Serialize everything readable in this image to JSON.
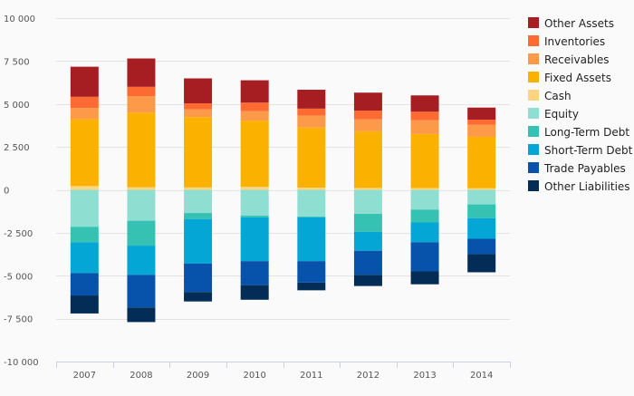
{
  "chart_data": {
    "type": "bar",
    "stacked": true,
    "categories": [
      "2007",
      "2008",
      "2009",
      "2010",
      "2011",
      "2012",
      "2013",
      "2014"
    ],
    "ylim": [
      -10000,
      10000
    ],
    "yticks": [
      10000,
      7500,
      5000,
      2500,
      0,
      -2500,
      -5000,
      -7500,
      -10000
    ],
    "ytick_labels": [
      "10 000",
      "7 500",
      "5 000",
      "2 500",
      "0",
      "-2 500",
      "-5 000",
      "-7 500",
      "-10 000"
    ],
    "grid": true,
    "legend_position": "right",
    "title": "",
    "xlabel": "",
    "ylabel": "",
    "series": [
      {
        "name": "Cash",
        "color": "#fdd582",
        "group": "positive",
        "values": [
          220,
          150,
          140,
          180,
          130,
          110,
          100,
          90
        ]
      },
      {
        "name": "Fixed Assets",
        "color": "#fbb100",
        "group": "positive",
        "values": [
          3900,
          4350,
          4100,
          3850,
          3500,
          3300,
          3150,
          3000
        ]
      },
      {
        "name": "Receivables",
        "color": "#fc9a4a",
        "group": "positive",
        "values": [
          650,
          950,
          450,
          550,
          700,
          700,
          800,
          700
        ]
      },
      {
        "name": "Inventories",
        "color": "#fd6b32",
        "group": "positive",
        "values": [
          650,
          550,
          350,
          500,
          400,
          500,
          500,
          300
        ]
      },
      {
        "name": "Other Assets",
        "color": "#a61d22",
        "group": "positive",
        "values": [
          1750,
          1650,
          1450,
          1300,
          1100,
          1050,
          950,
          700
        ]
      },
      {
        "name": "Equity",
        "color": "#8fded2",
        "group": "negative",
        "values": [
          2150,
          1800,
          1350,
          1500,
          1550,
          1400,
          1150,
          850
        ]
      },
      {
        "name": "Long-Term Debt",
        "color": "#35c2b3",
        "group": "negative",
        "values": [
          900,
          1450,
          350,
          100,
          50,
          1050,
          750,
          800
        ]
      },
      {
        "name": "Short-Term Debt",
        "color": "#04a6d5",
        "group": "negative",
        "values": [
          1800,
          1700,
          2600,
          2550,
          2550,
          1100,
          1150,
          1200
        ]
      },
      {
        "name": "Trade Payables",
        "color": "#0753ab",
        "group": "negative",
        "values": [
          1300,
          1900,
          1650,
          1400,
          1250,
          1400,
          1700,
          900
        ]
      },
      {
        "name": "Other Liabilities",
        "color": "#032d57",
        "group": "negative",
        "values": [
          1050,
          850,
          550,
          850,
          450,
          650,
          750,
          1050
        ]
      }
    ],
    "legend": [
      {
        "name": "Other Assets",
        "color": "#a61d22"
      },
      {
        "name": "Inventories",
        "color": "#fd6b32"
      },
      {
        "name": "Receivables",
        "color": "#fc9a4a"
      },
      {
        "name": "Fixed Assets",
        "color": "#fbb100"
      },
      {
        "name": "Cash",
        "color": "#fdd582"
      },
      {
        "name": "Equity",
        "color": "#8fded2"
      },
      {
        "name": "Long-Term Debt",
        "color": "#35c2b3"
      },
      {
        "name": "Short-Term Debt",
        "color": "#04a6d5"
      },
      {
        "name": "Trade Payables",
        "color": "#0753ab"
      },
      {
        "name": "Other Liabilities",
        "color": "#032d57"
      }
    ]
  }
}
